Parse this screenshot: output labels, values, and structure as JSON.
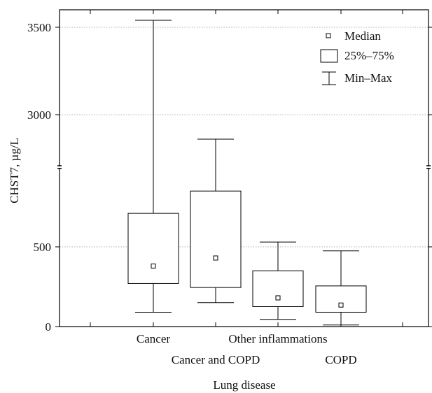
{
  "chart_data": {
    "type": "box",
    "xlabel": "Lung disease",
    "ylabel": "CHST7, µg/L",
    "y_axis_break": true,
    "y_segments": [
      {
        "from": 0,
        "to": 1000,
        "ticks": [
          0,
          500
        ]
      },
      {
        "from": 2700,
        "to": 3600,
        "ticks": [
          3000,
          3500
        ]
      }
    ],
    "grid": "horizontal dotted at ticks",
    "legend": {
      "position": "top-right",
      "items": [
        {
          "symbol": "median",
          "label": "Median"
        },
        {
          "symbol": "box",
          "label": "25%–75%"
        },
        {
          "symbol": "whisker",
          "label": "Min–Max"
        }
      ]
    },
    "categories": [
      "Cancer",
      "Cancer and COPD",
      "Other inflammations",
      "COPD"
    ],
    "boxes": [
      {
        "category": "Cancer",
        "min": 90,
        "q1": 270,
        "median": 380,
        "q3": 710,
        "max": 3540
      },
      {
        "category": "Cancer and COPD",
        "min": 150,
        "q1": 245,
        "median": 430,
        "q3": 850,
        "max": 2860
      },
      {
        "category": "Other inflammations",
        "min": 45,
        "q1": 125,
        "median": 180,
        "q3": 350,
        "max": 530
      },
      {
        "category": "COPD",
        "min": 10,
        "q1": 90,
        "median": 135,
        "q3": 255,
        "max": 475
      }
    ]
  }
}
